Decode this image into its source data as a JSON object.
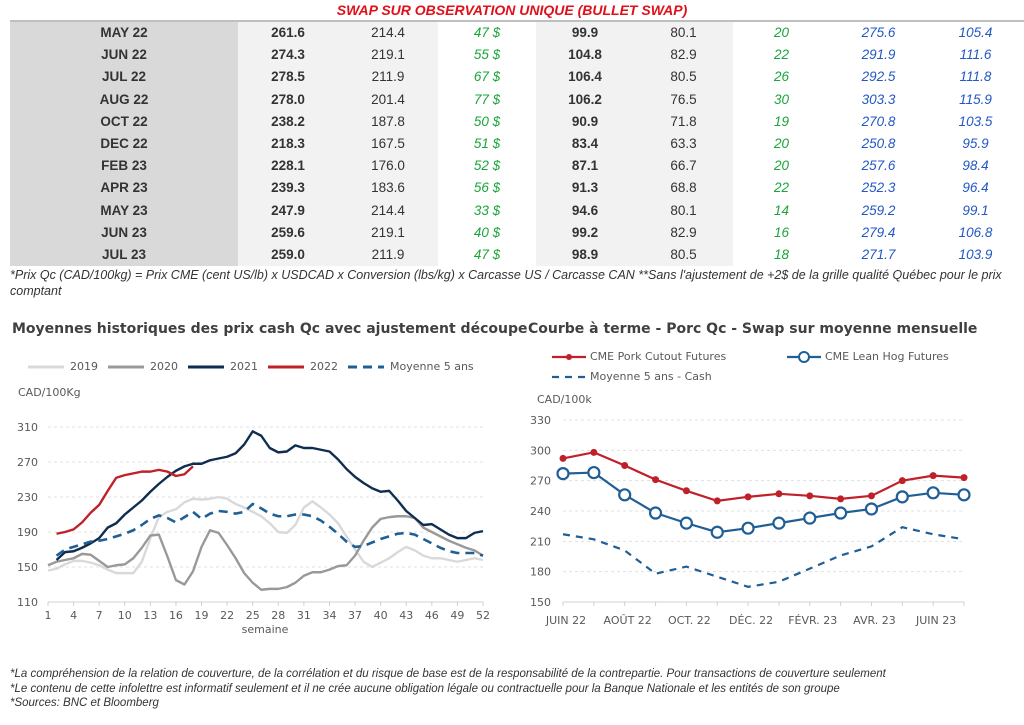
{
  "table": {
    "title": "SWAP SUR OBSERVATION UNIQUE (BULLET SWAP)",
    "rows": [
      [
        "MAY 22",
        "261.6",
        "214.4",
        "47 $",
        "99.9",
        "80.1",
        "20",
        "275.6",
        "105.4"
      ],
      [
        "JUN 22",
        "274.3",
        "219.1",
        "55 $",
        "104.8",
        "82.9",
        "22",
        "291.9",
        "111.6"
      ],
      [
        "JUL 22",
        "278.5",
        "211.9",
        "67 $",
        "106.4",
        "80.5",
        "26",
        "292.5",
        "111.8"
      ],
      [
        "AUG 22",
        "278.0",
        "201.4",
        "77 $",
        "106.2",
        "76.5",
        "30",
        "303.3",
        "115.9"
      ],
      [
        "OCT 22",
        "238.2",
        "187.8",
        "50 $",
        "90.9",
        "71.8",
        "19",
        "270.8",
        "103.5"
      ],
      [
        "DEC 22",
        "218.3",
        "167.5",
        "51 $",
        "83.4",
        "63.3",
        "20",
        "250.8",
        "95.9"
      ],
      [
        "FEB 23",
        "228.1",
        "176.0",
        "52 $",
        "87.1",
        "66.7",
        "20",
        "257.6",
        "98.4"
      ],
      [
        "APR 23",
        "239.3",
        "183.6",
        "56 $",
        "91.3",
        "68.8",
        "22",
        "252.3",
        "96.4"
      ],
      [
        "MAY 23",
        "247.9",
        "214.4",
        "33 $",
        "94.6",
        "80.1",
        "14",
        "259.2",
        "99.1"
      ],
      [
        "JUN 23",
        "259.6",
        "219.1",
        "40 $",
        "99.2",
        "82.9",
        "16",
        "279.4",
        "106.8"
      ],
      [
        "JUL 23",
        "259.0",
        "211.9",
        "47 $",
        "98.9",
        "80.5",
        "18",
        "271.7",
        "103.9"
      ]
    ],
    "note": "*Prix Qc (CAD/100kg) = Prix CME (cent US/lb) x USDCAD x Conversion (lbs/kg) x Carcasse US / Carcasse CAN **Sans l'ajustement de +2$ de la grille qualité Québec pour le prix comptant"
  },
  "colors": {
    "title_red": "#e0101a",
    "green": "#1aa53a",
    "blue": "#2357c6"
  },
  "chart_data": [
    {
      "type": "line",
      "title": "Moyennes historiques des prix cash Qc avec ajustement découpe",
      "ylabel": "CAD/100Kg",
      "xlabel": "semaine",
      "ylim": [
        110,
        310
      ],
      "yticks": [
        110,
        150,
        190,
        230,
        270,
        310
      ],
      "xlim": [
        1,
        52
      ],
      "xticks": [
        1,
        4,
        7,
        10,
        13,
        16,
        19,
        22,
        25,
        28,
        31,
        34,
        37,
        40,
        43,
        46,
        49,
        52
      ],
      "grid": true,
      "legend_position": "top",
      "series": [
        {
          "name": "2019",
          "color": "#d9d9d9",
          "dash": false,
          "start_week": 1,
          "values": [
            146,
            148,
            153,
            157,
            157,
            155,
            152,
            147,
            143,
            143,
            143,
            156,
            183,
            207,
            213,
            216,
            224,
            228,
            227,
            228,
            230,
            228,
            222,
            218,
            213,
            208,
            200,
            190,
            189,
            198,
            218,
            225,
            218,
            210,
            200,
            185,
            170,
            156,
            150,
            155,
            160,
            167,
            173,
            169,
            163,
            160,
            160,
            158,
            156,
            158,
            160,
            158
          ]
        },
        {
          "name": "2020",
          "color": "#999999",
          "dash": false,
          "start_week": 1,
          "values": [
            152,
            156,
            158,
            160,
            165,
            164,
            157,
            150,
            152,
            153,
            160,
            172,
            186,
            187,
            162,
            135,
            130,
            145,
            173,
            192,
            189,
            175,
            160,
            143,
            132,
            124,
            125,
            125,
            127,
            132,
            140,
            144,
            144,
            147,
            151,
            152,
            163,
            180,
            195,
            205,
            207,
            208,
            208,
            206,
            195,
            190,
            185,
            180,
            176,
            172,
            169,
            163
          ]
        },
        {
          "name": "2021",
          "color": "#0f2d4f",
          "dash": false,
          "start_week": 2,
          "values": [
            158,
            167,
            168,
            172,
            177,
            183,
            195,
            200,
            210,
            218,
            226,
            236,
            245,
            253,
            260,
            265,
            268,
            268,
            272,
            274,
            276,
            280,
            290,
            305,
            300,
            286,
            281,
            282,
            289,
            286,
            286,
            284,
            282,
            273,
            262,
            253,
            246,
            240,
            236,
            237,
            226,
            214,
            206,
            198,
            199,
            193,
            187,
            183,
            183,
            189,
            191
          ]
        },
        {
          "name": "2022",
          "color": "#c0202a",
          "dash": false,
          "start_week": 2,
          "values": [
            188,
            190,
            193,
            201,
            212,
            221,
            237,
            252,
            255,
            257,
            259,
            259,
            261,
            259,
            254,
            256,
            265
          ]
        },
        {
          "name": "Moyenne 5 ans",
          "color": "#1f5f96",
          "dash": true,
          "start_week": 2,
          "values": [
            163,
            170,
            173,
            176,
            179,
            180,
            182,
            185,
            188,
            192,
            198,
            205,
            209,
            206,
            201,
            207,
            213,
            205,
            211,
            214,
            213,
            211,
            213,
            222,
            217,
            211,
            208,
            208,
            210,
            210,
            208,
            203,
            196,
            188,
            179,
            173,
            174,
            178,
            182,
            185,
            188,
            189,
            187,
            182,
            177,
            172,
            168,
            166,
            166,
            166,
            163
          ]
        }
      ]
    },
    {
      "type": "line",
      "title": "Courbe à terme - Porc Qc - Swap sur moyenne mensuelle",
      "ylabel": "CAD/100k",
      "ylim": [
        150,
        330
      ],
      "yticks": [
        150,
        180,
        210,
        240,
        270,
        300,
        330
      ],
      "x_tick_labels": [
        "JUIN 22",
        "AOÛT 22",
        "OCT. 22",
        "DÉC. 22",
        "FÉVR. 23",
        "AVR. 23",
        "JUIN 23"
      ],
      "grid": true,
      "legend_position": "top",
      "series": [
        {
          "name": "CME Pork Cutout Futures",
          "color": "#c0202a",
          "marker": "dot",
          "dash": false,
          "values": [
            292,
            298,
            285,
            271,
            260,
            250,
            254,
            257,
            255,
            252,
            255,
            270,
            275,
            273
          ]
        },
        {
          "name": "CME Lean Hog Futures",
          "color": "#1f5f96",
          "marker": "circle",
          "dash": false,
          "values": [
            277,
            278,
            256,
            238,
            228,
            219,
            223,
            228,
            233,
            238,
            242,
            254,
            258,
            256
          ]
        },
        {
          "name": "Moyenne 5 ans - Cash",
          "color": "#1f5f96",
          "marker": "none",
          "dash": true,
          "values": [
            217,
            212,
            201,
            178,
            185,
            175,
            165,
            170,
            183,
            196,
            205,
            224,
            217,
            212
          ]
        }
      ]
    }
  ],
  "footer": [
    "*La compréhension de la relation de couverture, de la corrélation et du risque de base est de la responsabilité de la contrepartie. Pour transactions de couverture seulement",
    "*Le contenu de cette infolettre est informatif seulement et il ne crée aucune obligation légale ou contractuelle pour la Banque Nationale et les entités de son groupe",
    "*Sources: BNC et Bloomberg"
  ]
}
